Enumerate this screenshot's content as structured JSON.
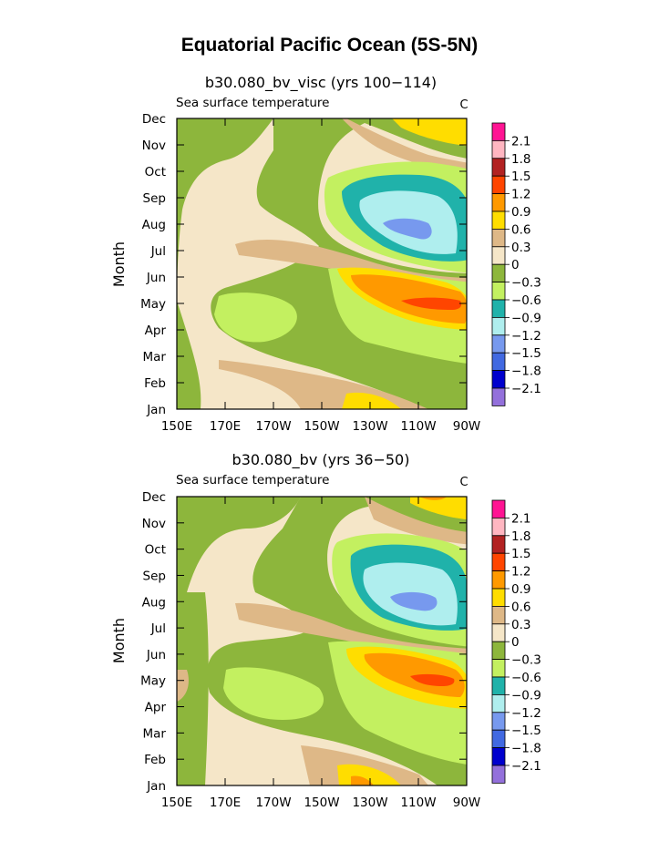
{
  "figure": {
    "title": "Equatorial Pacific Ocean (5S-5N)"
  },
  "chart_data": [
    {
      "type": "heatmap",
      "title": "b30.080_bv_visc (yrs 100−114)",
      "subtitle_left": "Sea surface temperature",
      "subtitle_right": "C",
      "ylabel": "Month",
      "xlabel": "",
      "x_ticks": [
        "150E",
        "170E",
        "170W",
        "150W",
        "130W",
        "110W",
        "90W"
      ],
      "y_ticks": [
        "Jan",
        "Feb",
        "Mar",
        "Apr",
        "May",
        "Jun",
        "Jul",
        "Aug",
        "Sep",
        "Oct",
        "Nov",
        "Dec"
      ],
      "colorbar": {
        "labels": [
          "2.1",
          "1.8",
          "1.5",
          "1.2",
          "0.9",
          "0.6",
          "0.3",
          "0",
          "−0.3",
          "−0.6",
          "−0.9",
          "−1.2",
          "−1.5",
          "−1.8",
          "−2.1"
        ],
        "colors": [
          "#ff1493",
          "#ffb6c1",
          "#b22222",
          "#ff4500",
          "#ff9900",
          "#ffdd00",
          "#deb887",
          "#f5e6c8",
          "#8db63c",
          "#c3f060",
          "#20b2aa",
          "#afeeee",
          "#7799ee",
          "#4169e1",
          "#0000cd",
          "#9370db"
        ]
      },
      "regions_desc": [
        "cool anomaly Aug-Sep near 110W (~-1.2)",
        "warm anomaly May near 100W (~1.2)"
      ]
    },
    {
      "type": "heatmap",
      "title": "b30.080_bv (yrs 36−50)",
      "subtitle_left": "Sea surface temperature",
      "subtitle_right": "C",
      "ylabel": "Month",
      "xlabel": "",
      "x_ticks": [
        "150E",
        "170E",
        "170W",
        "150W",
        "130W",
        "110W",
        "90W"
      ],
      "y_ticks": [
        "Jan",
        "Feb",
        "Mar",
        "Apr",
        "May",
        "Jun",
        "Jul",
        "Aug",
        "Sep",
        "Oct",
        "Nov",
        "Dec"
      ],
      "colorbar": {
        "labels": [
          "2.1",
          "1.8",
          "1.5",
          "1.2",
          "0.9",
          "0.6",
          "0.3",
          "0",
          "−0.3",
          "−0.6",
          "−0.9",
          "−1.2",
          "−1.5",
          "−1.8",
          "−2.1"
        ],
        "colors": [
          "#ff1493",
          "#ffb6c1",
          "#b22222",
          "#ff4500",
          "#ff9900",
          "#ffdd00",
          "#deb887",
          "#f5e6c8",
          "#8db63c",
          "#c3f060",
          "#20b2aa",
          "#afeeee",
          "#7799ee",
          "#4169e1",
          "#0000cd",
          "#9370db"
        ]
      },
      "regions_desc": [
        "cool anomaly Aug near 115W (~-1.2)",
        "warm anomaly May near 105W (~0.9)"
      ]
    }
  ]
}
